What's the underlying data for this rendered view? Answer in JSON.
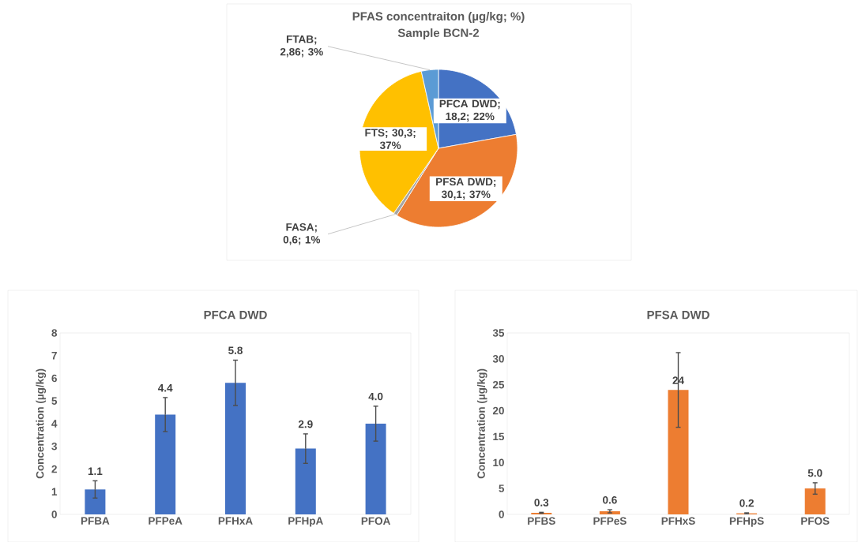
{
  "chart_data": [
    {
      "type": "pie",
      "title": "PFAS concentraiton (µg/kg; %)",
      "subtitle": "Sample BCN-2",
      "categories": [
        "PFCA DWD",
        "PFSA DWD",
        "FASA",
        "FTS",
        "FTAB"
      ],
      "values": [
        18.2,
        30.1,
        0.6,
        30.3,
        2.86
      ],
      "colors": [
        "#4472c4",
        "#ed7d31",
        "#a5a5a5",
        "#ffc000",
        "#5b9bd5"
      ],
      "value_labels": [
        "; 18,2; 22%",
        "; 30,1; 37%",
        "; 0,6; 1%",
        "; 30,3; 37%",
        "; 2,86; 3%"
      ]
    },
    {
      "type": "bar",
      "title": "PFCA DWD",
      "ylabel": "Concentration (µg/kg)",
      "categories": [
        "PFBA",
        "PFPeA",
        "PFHxA",
        "PFHpA",
        "PFOA"
      ],
      "values": [
        1.1,
        4.4,
        5.8,
        2.9,
        4.0
      ],
      "errors": [
        0.38,
        0.75,
        1.0,
        0.65,
        0.77
      ],
      "color": "#4472c4",
      "ylim": [
        0,
        8
      ],
      "yticks": [
        0,
        1,
        2,
        3,
        4,
        5,
        6,
        7,
        8
      ],
      "value_labels": [
        "1.1",
        "4.4",
        "5.8",
        "2.9",
        "4.0"
      ]
    },
    {
      "type": "bar",
      "title": "PFSA DWD",
      "ylabel": "Concentration (µg/kg)",
      "categories": [
        "PFBS",
        "PFPeS",
        "PFHxS",
        "PFHpS",
        "PFOS"
      ],
      "values": [
        0.3,
        0.6,
        24,
        0.2,
        5.0
      ],
      "errors": [
        0.1,
        0.3,
        7.2,
        0.1,
        1.1
      ],
      "color": "#ed7d31",
      "ylim": [
        0,
        35
      ],
      "yticks": [
        0,
        5,
        10,
        15,
        20,
        25,
        30,
        35
      ],
      "value_labels": [
        "0.3",
        "0.6",
        "24",
        "0.2",
        "5.0"
      ]
    }
  ]
}
